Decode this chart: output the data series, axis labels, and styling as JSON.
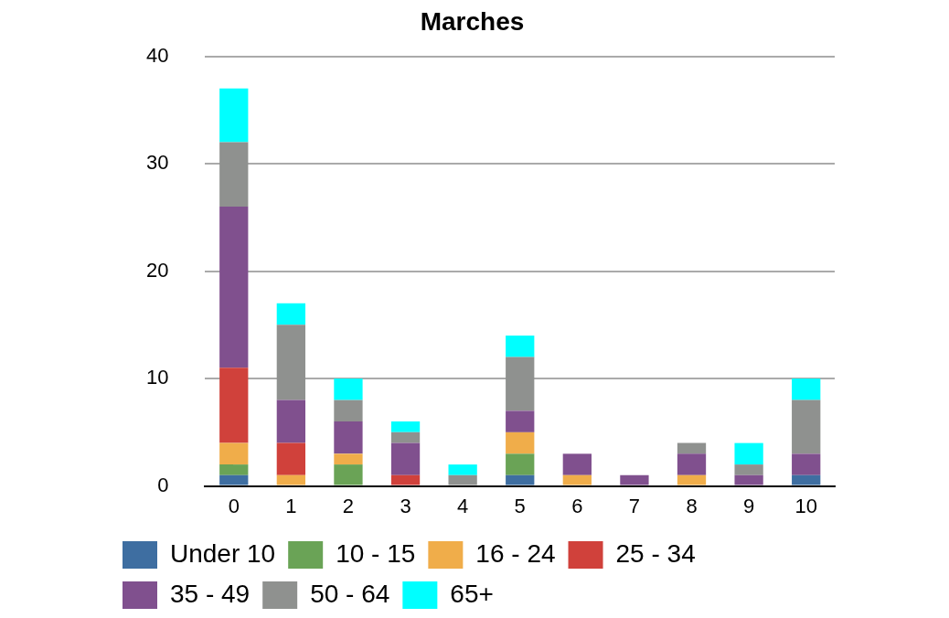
{
  "chart_data": {
    "type": "bar",
    "title": "Marches",
    "stacked": true,
    "grid": "y",
    "legend": "bottom",
    "categories": [
      "0",
      "1",
      "2",
      "3",
      "4",
      "5",
      "6",
      "7",
      "8",
      "9",
      "10"
    ],
    "ylim": [
      0,
      40
    ],
    "yticks": [
      0,
      10,
      20,
      30,
      40
    ],
    "series": [
      {
        "name": "Under 10",
        "color": "#3e6ea1",
        "values": [
          1,
          0,
          0,
          0,
          0,
          1,
          0,
          0,
          0,
          0,
          1
        ]
      },
      {
        "name": "10 - 15",
        "color": "#6aa356",
        "values": [
          1,
          0,
          2,
          0,
          0,
          2,
          0,
          0,
          0,
          0,
          0
        ]
      },
      {
        "name": "16 - 24",
        "color": "#f0ad4a",
        "values": [
          2,
          1,
          1,
          0,
          0,
          2,
          1,
          0,
          1,
          0,
          0
        ]
      },
      {
        "name": "25 - 34",
        "color": "#d0413b",
        "values": [
          7,
          3,
          0,
          1,
          0,
          0,
          0,
          0,
          0,
          0,
          0
        ]
      },
      {
        "name": "35 - 49",
        "color": "#80508e",
        "values": [
          15,
          4,
          3,
          3,
          0,
          2,
          2,
          1,
          2,
          1,
          2
        ]
      },
      {
        "name": "50 - 64",
        "color": "#8f918f",
        "values": [
          6,
          7,
          2,
          1,
          1,
          5,
          0,
          0,
          1,
          1,
          5
        ]
      },
      {
        "name": "65+",
        "color": "#00ffff",
        "values": [
          5,
          2,
          2,
          1,
          1,
          2,
          0,
          0,
          0,
          2,
          2
        ]
      }
    ]
  }
}
